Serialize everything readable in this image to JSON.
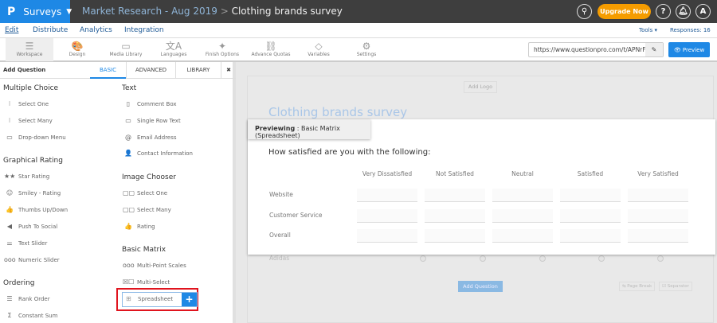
{
  "header": {
    "logo": "P",
    "app": "Surveys",
    "breadcrumb_parent": "Market Research - Aug 2019",
    "breadcrumb_sep": ">",
    "breadcrumb_current": "Clothing brands survey",
    "upgrade": "Upgrade Now",
    "avatar": "A",
    "help": "?"
  },
  "nav": {
    "items": [
      "Edit",
      "Distribute",
      "Analytics",
      "Integration"
    ],
    "tools": "Tools ▾",
    "responses": "Responses: 16"
  },
  "toolbar": {
    "items": [
      {
        "label": "Workspace",
        "icon": "☰"
      },
      {
        "label": "Design",
        "icon": "🎨"
      },
      {
        "label": "Media Library",
        "icon": "▭"
      },
      {
        "label": "Languages",
        "icon": "文A"
      },
      {
        "label": "Finish Options",
        "icon": "✦"
      },
      {
        "label": "Advance Quotas",
        "icon": "⛓"
      },
      {
        "label": "Variables",
        "icon": "◇"
      },
      {
        "label": "Settings",
        "icon": "⚙"
      }
    ],
    "url": "https://www.questionpro.com/t/APNrFZ",
    "preview": "👁 Preview"
  },
  "panel": {
    "title": "Add Question",
    "tabs": [
      "BASIC",
      "ADVANCED",
      "LIBRARY"
    ],
    "close": "✖",
    "left": [
      {
        "heading": "Multiple Choice",
        "items": [
          [
            "⁝",
            "Select One"
          ],
          [
            "⁝",
            "Select Many"
          ],
          [
            "▭",
            "Drop-down Menu"
          ]
        ]
      },
      {
        "heading": "Graphical Rating",
        "items": [
          [
            "★★",
            "Star Rating"
          ],
          [
            "☺",
            "Smiley - Rating"
          ],
          [
            "👍",
            "Thumbs Up/Down"
          ],
          [
            "◀",
            "Push To Social"
          ],
          [
            "⚌",
            "Text Slider"
          ],
          [
            "ooo",
            "Numeric Slider"
          ]
        ]
      },
      {
        "heading": "Ordering",
        "items": [
          [
            "☰",
            "Rank Order"
          ],
          [
            "Σ",
            "Constant Sum"
          ]
        ]
      }
    ],
    "right": [
      {
        "heading": "Text",
        "items": [
          [
            "▯",
            "Comment Box"
          ],
          [
            "▭",
            "Single Row Text"
          ],
          [
            "@",
            "Email Address"
          ],
          [
            "👤",
            "Contact Information"
          ]
        ]
      },
      {
        "heading": "Image Chooser",
        "items": [
          [
            "▢▢",
            "Select One"
          ],
          [
            "▢▢",
            "Select Many"
          ],
          [
            "👍",
            "Rating"
          ]
        ]
      },
      {
        "heading": "Basic Matrix",
        "items": [
          [
            "ooo",
            "Multi-Point Scales"
          ],
          [
            "☒☐",
            "Multi-Select"
          ]
        ]
      }
    ],
    "spreadsheet": "Spreadsheet",
    "spreadsheet_add": "+"
  },
  "survey": {
    "add_logo": "Add Logo",
    "title": "Clothing brands survey",
    "bg_row": "Adidas",
    "add_question": "Add Question",
    "page_break": "⇆ Page Break",
    "separator": "☑ Separator"
  },
  "preview": {
    "label_bold": "Previewing",
    "label_rest": " : Basic Matrix (Spreadsheet)",
    "question": "How satisfied are you with the following:",
    "columns": [
      "Very Dissatisfied",
      "Not Satisfied",
      "Neutral",
      "Satisfied",
      "Very Satisfied"
    ],
    "rows": [
      "Website",
      "Customer Service",
      "Overall"
    ]
  }
}
